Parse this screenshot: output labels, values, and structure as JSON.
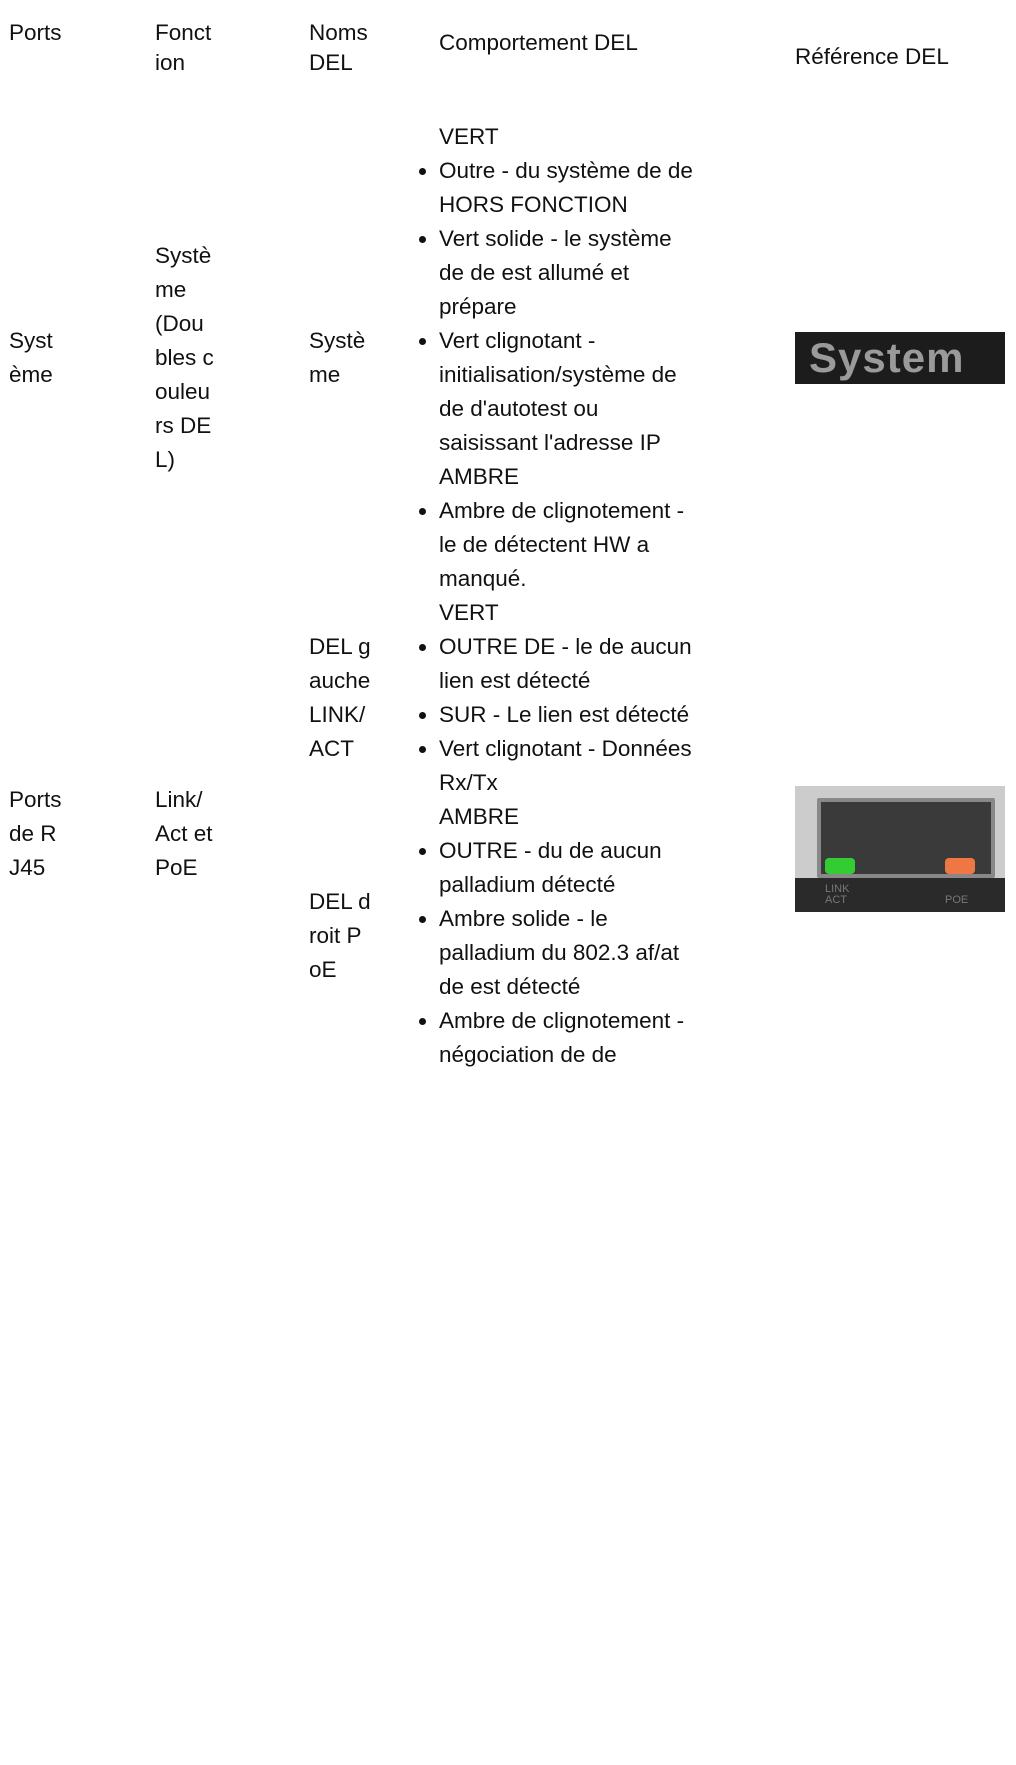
{
  "header": {
    "ports": "Ports",
    "function": "Fonction",
    "led_names": "Noms DEL",
    "behavior": "Comportement DEL",
    "reference": "Référence DEL"
  },
  "rows": [
    {
      "port": "Système",
      "function": "Système (Doubles couleurs DEL)",
      "leds": [
        {
          "name": "Système",
          "behavior": [
            {
              "color": "VERT",
              "items": [
                "Outre - du système de  de HORS FONCTION",
                "Vert solide - le système de  de est allumé et prépare",
                "Vert clignotant - initialisation/système de  de d'autotest ou saisissant l'adresse IP"
              ]
            },
            {
              "color": "AMBRE",
              "items": [
                "Ambre de clignotement - le de  détectent HW a manqué."
              ]
            }
          ]
        }
      ],
      "reference": {
        "labels": [
          "System"
        ]
      }
    },
    {
      "port": "Ports de RJ45",
      "function": "Link/Act et PoE",
      "leds": [
        {
          "name": "DEL gauche LINK/ACT",
          "behavior": [
            {
              "color": "VERT",
              "items": [
                "OUTRE DE - le de  aucun lien est détecté",
                "SUR - Le lien est détecté",
                "Vert clignotant - Données Rx/Tx"
              ]
            }
          ]
        },
        {
          "name": "DEL droit PoE",
          "behavior": [
            {
              "color": "AMBRE",
              "items": [
                "OUTRE - du  de aucun palladium détecté",
                "Ambre solide - le palladium du 802.3 af/at de  est détecté",
                "Ambre de clignotement - négociation de  de"
              ]
            }
          ]
        }
      ],
      "reference": {
        "labels": [
          "LINK ACT",
          "POE"
        ]
      }
    }
  ]
}
